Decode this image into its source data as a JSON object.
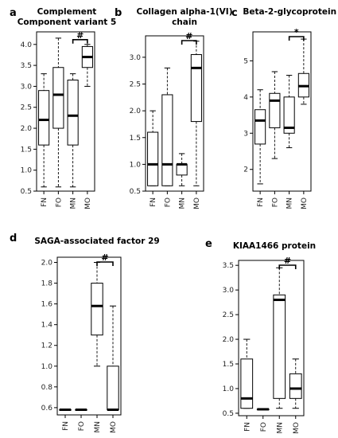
{
  "figure": {
    "panels": [
      {
        "letter": "a",
        "title_lines": [
          "Complement",
          "Component variant 5"
        ]
      },
      {
        "letter": "b",
        "title_lines": [
          "Collagen alpha-1(VI)",
          "chain"
        ]
      },
      {
        "letter": "c",
        "title_lines": [
          "Beta-2-glycoprotein I"
        ]
      },
      {
        "letter": "d",
        "title_lines": [
          "SAGA-associated factor 29"
        ]
      },
      {
        "letter": "e",
        "title_lines": [
          "KIAA1466 protein"
        ]
      }
    ]
  },
  "chart_data": [
    {
      "type": "boxplot",
      "title": "Complement Component variant 5",
      "categories": [
        "FN",
        "FO",
        "MN",
        "MO"
      ],
      "ylim": [
        0.5,
        4.3
      ],
      "yticks": [
        0.5,
        1.0,
        1.5,
        2.0,
        2.5,
        3.0,
        3.5,
        4.0
      ],
      "yticklabels": [
        "0.5",
        "1.0",
        "1.5",
        "2.0",
        "2.5",
        "3.0",
        "3.5",
        "4.0"
      ],
      "boxes": [
        {
          "min": 0.6,
          "q1": 1.6,
          "median": 2.2,
          "q3": 2.9,
          "max": 3.3
        },
        {
          "min": 0.6,
          "q1": 2.0,
          "median": 2.8,
          "q3": 3.45,
          "max": 4.15
        },
        {
          "min": 0.6,
          "q1": 1.6,
          "median": 2.3,
          "q3": 3.15,
          "max": 3.3
        },
        {
          "min": 3.0,
          "q1": 3.45,
          "median": 3.7,
          "q3": 3.95,
          "max": 4.0
        }
      ],
      "significance": {
        "from": "MN",
        "to": "MO",
        "label": "#"
      }
    },
    {
      "type": "boxplot",
      "title": "Collagen alpha-1(VI) chain",
      "categories": [
        "FN",
        "FO",
        "MN",
        "MO"
      ],
      "ylim": [
        0.5,
        3.4
      ],
      "yticks": [
        0.5,
        1.0,
        1.5,
        2.0,
        2.5,
        3.0
      ],
      "yticklabels": [
        "0.5",
        "1.0",
        "1.5",
        "2.0",
        "2.5",
        "3.0"
      ],
      "boxes": [
        {
          "min": 0.6,
          "q1": 0.6,
          "median": 1.0,
          "q3": 1.6,
          "max": 2.0
        },
        {
          "min": 0.6,
          "q1": 0.6,
          "median": 1.0,
          "q3": 2.3,
          "max": 2.8
        },
        {
          "min": 0.6,
          "q1": 0.8,
          "median": 1.0,
          "q3": 1.0,
          "max": 1.2
        },
        {
          "min": 0.6,
          "q1": 1.8,
          "median": 2.8,
          "q3": 3.05,
          "max": 3.3
        }
      ],
      "significance": {
        "from": "MN",
        "to": "MO",
        "label": "#"
      }
    },
    {
      "type": "boxplot",
      "title": "Beta-2-glycoprotein I",
      "categories": [
        "FN",
        "FO",
        "MN",
        "MO"
      ],
      "ylim": [
        1.4,
        5.8
      ],
      "yticks": [
        2,
        3,
        4,
        5
      ],
      "yticklabels": [
        "2",
        "3",
        "4",
        "5"
      ],
      "boxes": [
        {
          "min": 1.6,
          "q1": 2.7,
          "median": 3.35,
          "q3": 3.65,
          "max": 4.2
        },
        {
          "min": 2.3,
          "q1": 3.15,
          "median": 3.9,
          "q3": 4.1,
          "max": 4.7
        },
        {
          "min": 2.6,
          "q1": 3.0,
          "median": 3.15,
          "q3": 4.0,
          "max": 4.6
        },
        {
          "min": 3.8,
          "q1": 4.0,
          "median": 4.3,
          "q3": 4.65,
          "max": 5.6
        }
      ],
      "significance": {
        "from": "MN",
        "to": "MO",
        "label": "*"
      }
    },
    {
      "type": "boxplot",
      "title": "SAGA-associated factor 29",
      "categories": [
        "FN",
        "FO",
        "MN",
        "MO"
      ],
      "ylim": [
        0.53,
        2.05
      ],
      "yticks": [
        0.6,
        0.8,
        1.0,
        1.2,
        1.4,
        1.6,
        1.8,
        2.0
      ],
      "yticklabels": [
        "0.6",
        "0.8",
        "1.0",
        "1.2",
        "1.4",
        "1.6",
        "1.8",
        "2.0"
      ],
      "boxes": [
        {
          "min": 0.58,
          "q1": 0.58,
          "median": 0.58,
          "q3": 0.58,
          "max": 0.58
        },
        {
          "min": 0.58,
          "q1": 0.58,
          "median": 0.58,
          "q3": 0.58,
          "max": 0.58
        },
        {
          "min": 1.0,
          "q1": 1.3,
          "median": 1.58,
          "q3": 1.8,
          "max": 2.0
        },
        {
          "min": 0.58,
          "q1": 0.58,
          "median": 0.58,
          "q3": 1.0,
          "max": 1.58
        }
      ],
      "significance": {
        "from": "MN",
        "to": "MO",
        "label": "#"
      }
    },
    {
      "type": "boxplot",
      "title": "KIAA1466 protein",
      "categories": [
        "FN",
        "FO",
        "MN",
        "MO"
      ],
      "ylim": [
        0.45,
        3.6
      ],
      "yticks": [
        0.5,
        1.0,
        1.5,
        2.0,
        2.5,
        3.0,
        3.5
      ],
      "yticklabels": [
        "0.5",
        "1.0",
        "1.5",
        "2.0",
        "2.5",
        "3.0",
        "3.5"
      ],
      "boxes": [
        {
          "min": 0.6,
          "q1": 0.6,
          "median": 0.8,
          "q3": 1.6,
          "max": 2.0
        },
        {
          "min": 0.58,
          "q1": 0.58,
          "median": 0.58,
          "q3": 0.58,
          "max": 0.58
        },
        {
          "min": 0.6,
          "q1": 0.8,
          "median": 2.8,
          "q3": 2.9,
          "max": 3.45
        },
        {
          "min": 0.6,
          "q1": 0.8,
          "median": 1.0,
          "q3": 1.3,
          "max": 1.6
        }
      ],
      "significance": {
        "from": "MN",
        "to": "MO",
        "label": "#"
      }
    }
  ]
}
